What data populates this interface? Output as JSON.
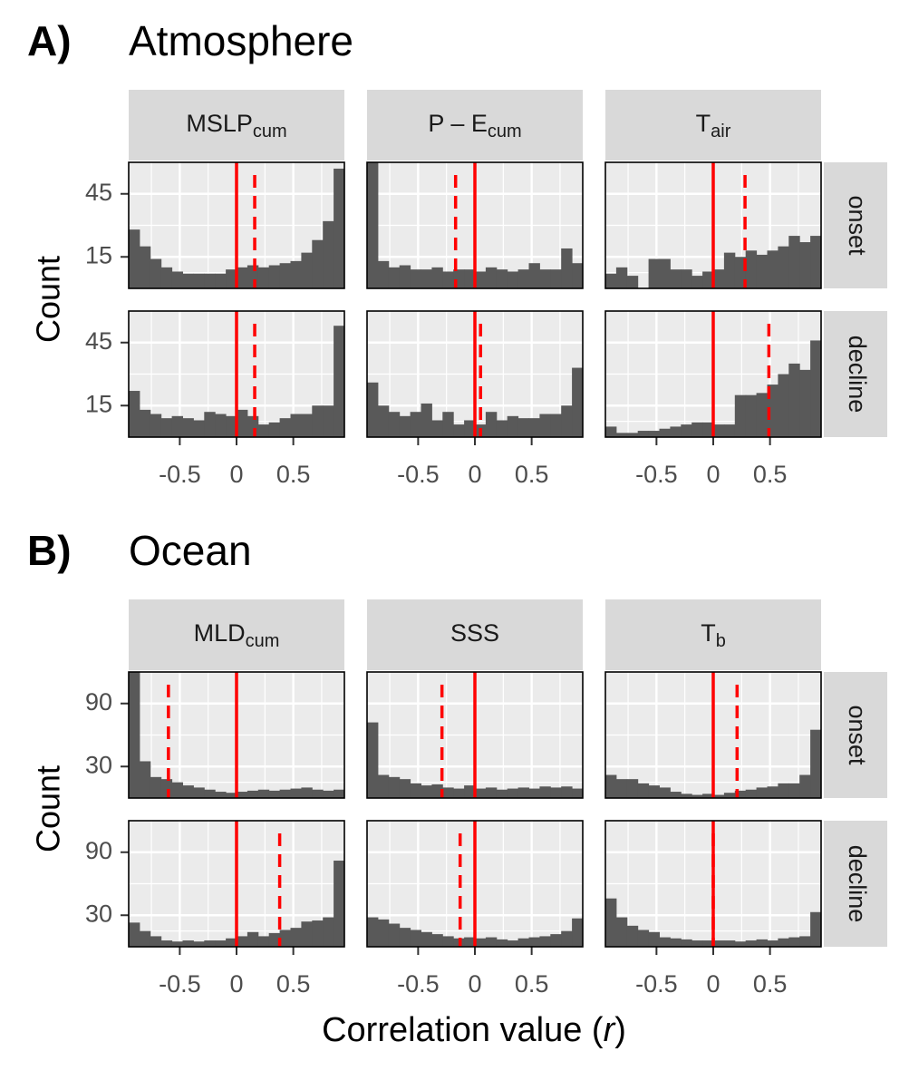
{
  "panels": {
    "A": {
      "label": "A)",
      "title": "Atmosphere"
    },
    "B": {
      "label": "B)",
      "title": "Ocean"
    }
  },
  "colors": {
    "bar": "#595959",
    "panel_bg": "#ebebeb",
    "strip_bg": "#d9d9d9",
    "grid": "#ffffff",
    "vline": "#ff0000",
    "tick_text": "#4d4d4d"
  },
  "chart_data": [
    {
      "type": "bar",
      "ylabel": "Count",
      "xlabel": "",
      "xlim": [
        -0.95,
        0.95
      ],
      "xticks": [
        -0.5,
        0,
        0.5
      ],
      "xtick_labels": [
        "-0.5",
        "0",
        "0.5"
      ],
      "yticks": [
        15,
        45
      ],
      "ylim": [
        0,
        60
      ],
      "row_strips": [
        "onset",
        "decline"
      ],
      "bins": 20,
      "variables": [
        {
          "strip": {
            "base": "MSLP",
            "sub": "cum"
          },
          "onset": {
            "values": [
              28,
              20,
              14,
              10,
              8,
              7,
              7,
              7,
              7,
              9,
              10,
              11,
              10,
              11,
              12,
              13,
              17,
              23,
              32,
              57
            ],
            "solid_line": 0,
            "dashed_line": 0.16
          },
          "decline": {
            "values": [
              22,
              13,
              11,
              9,
              10,
              9,
              8,
              12,
              11,
              10,
              13,
              10,
              6,
              7,
              9,
              11,
              11,
              15,
              15,
              53
            ],
            "solid_line": 0,
            "dashed_line": 0.16
          }
        },
        {
          "strip": {
            "base": "P – E",
            "sub": "cum"
          },
          "onset": {
            "values": [
              60,
              13,
              10,
              11,
              9,
              9,
              10,
              8,
              9,
              9,
              8,
              10,
              9,
              8,
              9,
              12,
              9,
              9,
              19,
              12
            ],
            "solid_line": 0,
            "dashed_line": -0.17
          },
          "decline": {
            "values": [
              26,
              15,
              12,
              10,
              12,
              16,
              8,
              12,
              6,
              8,
              6,
              12,
              8,
              10,
              9,
              9,
              11,
              11,
              15,
              33
            ],
            "solid_line": 0,
            "dashed_line": 0.05
          }
        },
        {
          "strip": {
            "base": "T",
            "sub": "air"
          },
          "onset": {
            "values": [
              7,
              10,
              6,
              0,
              14,
              14,
              9,
              9,
              6,
              8,
              9,
              17,
              15,
              18,
              16,
              18,
              20,
              25,
              22,
              25
            ],
            "solid_line": 0,
            "dashed_line": 0.28
          },
          "decline": {
            "values": [
              5,
              2,
              2,
              3,
              3,
              4,
              5,
              6,
              7,
              7,
              6,
              6,
              20,
              20,
              21,
              25,
              30,
              35,
              32,
              46
            ],
            "solid_line": 0,
            "dashed_line": 0.49
          }
        }
      ]
    },
    {
      "type": "bar",
      "ylabel": "Count",
      "xlabel": "Correlation value (r)",
      "xlim": [
        -0.95,
        0.95
      ],
      "xticks": [
        -0.5,
        0,
        0.5
      ],
      "xtick_labels": [
        "-0.5",
        "0",
        "0.5"
      ],
      "yticks": [
        30,
        90
      ],
      "ylim": [
        0,
        120
      ],
      "row_strips": [
        "onset",
        "decline"
      ],
      "bins": 20,
      "variables": [
        {
          "strip": {
            "base": "MLD",
            "sub": "cum"
          },
          "onset": {
            "values": [
              120,
              35,
              20,
              18,
              15,
              12,
              10,
              8,
              6,
              5,
              6,
              7,
              8,
              7,
              8,
              9,
              10,
              8,
              7,
              8
            ],
            "solid_line": 0,
            "dashed_line": -0.6
          },
          "decline": {
            "values": [
              23,
              15,
              10,
              6,
              5,
              6,
              5,
              6,
              6,
              8,
              10,
              14,
              10,
              13,
              16,
              18,
              24,
              25,
              28,
              82
            ],
            "solid_line": 0,
            "dashed_line": 0.38
          }
        },
        {
          "strip": {
            "base": "SSS",
            "sub": ""
          },
          "onset": {
            "values": [
              72,
              22,
              20,
              18,
              14,
              12,
              13,
              10,
              9,
              12,
              9,
              10,
              8,
              9,
              10,
              9,
              11,
              10,
              11,
              9
            ],
            "solid_line": 0,
            "dashed_line": -0.29
          },
          "decline": {
            "values": [
              28,
              26,
              22,
              18,
              16,
              14,
              12,
              10,
              8,
              9,
              8,
              9,
              7,
              6,
              8,
              9,
              10,
              12,
              15,
              27
            ],
            "solid_line": 0,
            "dashed_line": -0.13
          }
        },
        {
          "strip": {
            "base": "T",
            "sub": "b"
          },
          "onset": {
            "values": [
              22,
              18,
              18,
              14,
              12,
              10,
              6,
              4,
              3,
              4,
              3,
              5,
              7,
              8,
              10,
              11,
              14,
              14,
              22,
              65
            ],
            "solid_line": 0,
            "dashed_line": 0.21
          },
          "decline": {
            "values": [
              46,
              28,
              20,
              16,
              14,
              9,
              8,
              7,
              6,
              6,
              6,
              6,
              5,
              6,
              7,
              6,
              8,
              9,
              10,
              33
            ],
            "solid_line": 0,
            "dashed_line": 0
          }
        }
      ]
    }
  ]
}
